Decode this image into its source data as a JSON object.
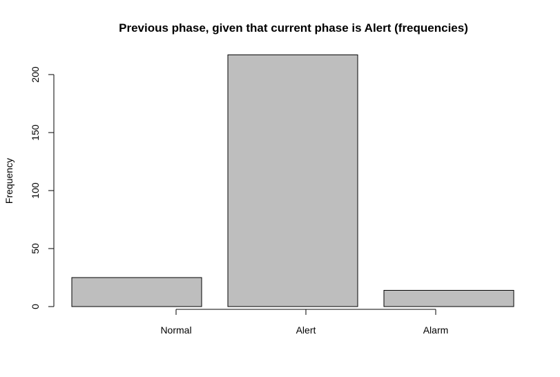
{
  "chart_data": {
    "type": "bar",
    "title": "Previous phase, given that current phase is Alert (frequencies)",
    "xlabel": "",
    "ylabel": "Frequency",
    "categories": [
      "Normal",
      "Alert",
      "Alarm"
    ],
    "values": [
      25,
      217,
      14
    ],
    "ylim": [
      0,
      200
    ],
    "yticks": [
      0,
      50,
      100,
      150,
      200
    ],
    "bar_color": "#bebebe",
    "grid": false
  }
}
